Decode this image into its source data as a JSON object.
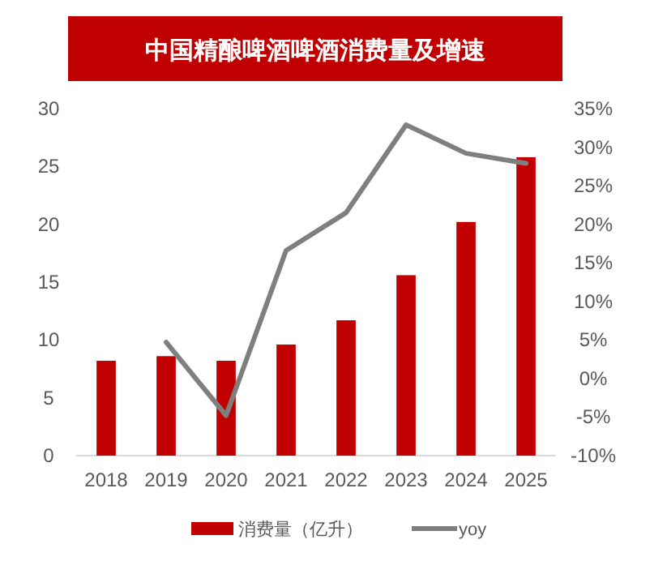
{
  "chart_data": {
    "type": "bar",
    "title": "中国精酿啤酒啤酒消费量及增速",
    "categories": [
      "2018",
      "2019",
      "2020",
      "2021",
      "2022",
      "2023",
      "2024",
      "2025"
    ],
    "series": [
      {
        "name": "消费量（亿升）",
        "color": "#c00000",
        "values": [
          8.2,
          8.6,
          8.2,
          9.6,
          11.7,
          15.6,
          20.2,
          25.8
        ]
      },
      {
        "name": "yoy",
        "type": "line",
        "axis": "y2",
        "color": "#7f7f7f",
        "values": [
          null,
          4.7,
          -4.8,
          16.6,
          21.5,
          32.9,
          29.2,
          27.9
        ]
      }
    ],
    "ylim": [
      0,
      30
    ],
    "yticks": [
      0,
      5,
      10,
      15,
      20,
      25,
      30
    ],
    "y2lim": [
      -10,
      35
    ],
    "y2ticks": [
      {
        "value": -10,
        "label": "-10%"
      },
      {
        "value": -5,
        "label": "-5%"
      },
      {
        "value": 0,
        "label": "0%"
      },
      {
        "value": 5,
        "label": "5%"
      },
      {
        "value": 10,
        "label": "10%"
      },
      {
        "value": 15,
        "label": "15%"
      },
      {
        "value": 20,
        "label": "20%"
      },
      {
        "value": 25,
        "label": "25%"
      },
      {
        "value": 30,
        "label": "30%"
      },
      {
        "value": 35,
        "label": "35%"
      }
    ],
    "legend": "bottom",
    "grid": false
  }
}
